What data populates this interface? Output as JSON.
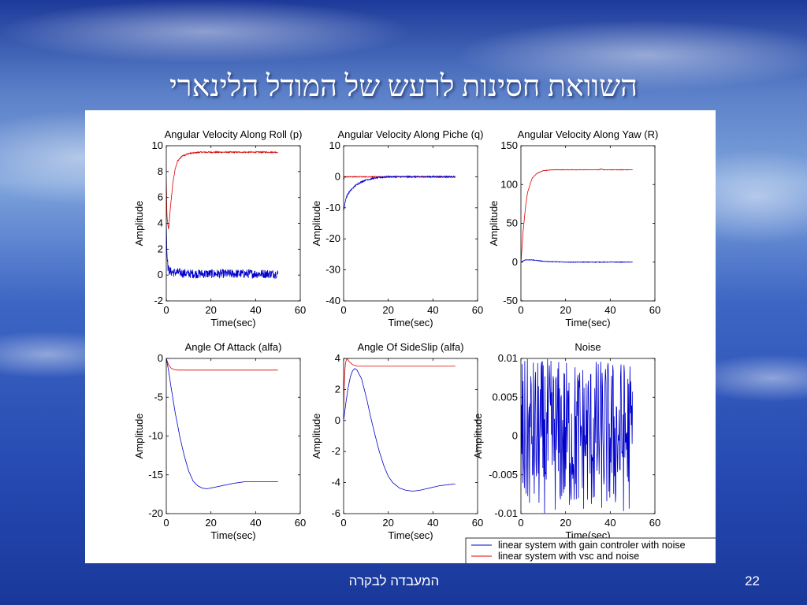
{
  "slide": {
    "title": "השוואת חסינות לרעש של המודל הלינארי",
    "footer": "המעבדה לבקרה",
    "page_number": "22"
  },
  "colors": {
    "blue": "#0000cc",
    "red": "#dd0000"
  },
  "legend": {
    "entries": [
      {
        "label": "linear system with gain controler with noise",
        "color": "#0000cc"
      },
      {
        "label": "linear system with vsc and noise",
        "color": "#dd0000"
      }
    ]
  },
  "chart_data": [
    {
      "type": "line",
      "title": "Angular Velocity Along Roll (p)",
      "xlabel": "Time(sec)",
      "ylabel": "Amplitude",
      "xlim": [
        0,
        60
      ],
      "ylim": [
        -2,
        10
      ],
      "xticks": [
        "0",
        "20",
        "40",
        "60"
      ],
      "yticks": [
        "-2",
        "0",
        "2",
        "4",
        "6",
        "8",
        "10"
      ],
      "series": [
        {
          "color": "#dd0000",
          "x": [
            0,
            0.3,
            1,
            2,
            3,
            4,
            5,
            7,
            10,
            15,
            20,
            30,
            40,
            50
          ],
          "y": [
            7.5,
            4.5,
            3.5,
            5.5,
            7.2,
            8.2,
            8.8,
            9.2,
            9.4,
            9.5,
            9.5,
            9.5,
            9.5,
            9.5
          ],
          "noise": 0.05
        },
        {
          "color": "#0000cc",
          "x": [
            0,
            0.3,
            0.8,
            1.5,
            3,
            5,
            10,
            20,
            30,
            40,
            50
          ],
          "y": [
            4.0,
            1.5,
            0.5,
            0.3,
            0.2,
            0.2,
            0.1,
            0.1,
            0.1,
            0.1,
            0.1
          ],
          "noise": 0.35
        }
      ]
    },
    {
      "type": "line",
      "title": "Angular Velocity Along Piche (q)",
      "xlabel": "Time(sec)",
      "ylabel": "Amplitude",
      "xlim": [
        0,
        60
      ],
      "ylim": [
        -40,
        10
      ],
      "xticks": [
        "0",
        "20",
        "40",
        "60"
      ],
      "yticks": [
        "-40",
        "-30",
        "-20",
        "-10",
        "0",
        "10"
      ],
      "series": [
        {
          "color": "#dd0000",
          "x": [
            0,
            0.5,
            2,
            5,
            10,
            20,
            30,
            40,
            50
          ],
          "y": [
            -1,
            0,
            0,
            0,
            0,
            0,
            0,
            0,
            0
          ],
          "noise": 0.15
        },
        {
          "color": "#0000cc",
          "x": [
            0,
            1,
            2,
            3,
            5,
            7,
            10,
            15,
            20,
            30,
            40,
            50
          ],
          "y": [
            -11,
            -7,
            -5.5,
            -4.5,
            -3,
            -2,
            -1,
            -0.3,
            0,
            0,
            0,
            0
          ],
          "noise": 0.25
        }
      ]
    },
    {
      "type": "line",
      "title": "Angular Velocity Along Yaw (R)",
      "xlabel": "Time(sec)",
      "ylabel": "Amplitude",
      "xlim": [
        0,
        60
      ],
      "ylim": [
        -50,
        150
      ],
      "xticks": [
        "0",
        "20",
        "40",
        "60"
      ],
      "yticks": [
        "-50",
        "0",
        "50",
        "100",
        "150"
      ],
      "series": [
        {
          "color": "#dd0000",
          "x": [
            0,
            1,
            2,
            3,
            5,
            7,
            10,
            15,
            20,
            35,
            36,
            37,
            50
          ],
          "y": [
            0,
            40,
            70,
            90,
            108,
            114,
            118,
            119,
            119,
            119,
            120,
            119,
            119
          ],
          "noise": 0.3
        },
        {
          "color": "#0000cc",
          "x": [
            0,
            2,
            5,
            10,
            20,
            30,
            40,
            50
          ],
          "y": [
            0,
            3,
            3,
            1,
            0,
            0,
            0,
            0
          ],
          "noise": 0.4
        }
      ]
    },
    {
      "type": "line",
      "title": "Angle Of Attack (alfa)",
      "xlabel": "Time(sec)",
      "ylabel": "Amplitude",
      "xlim": [
        0,
        60
      ],
      "ylim": [
        -20,
        0
      ],
      "xticks": [
        "0",
        "20",
        "40",
        "60"
      ],
      "yticks": [
        "-20",
        "-15",
        "-10",
        "-5",
        "0"
      ],
      "series": [
        {
          "color": "#dd0000",
          "x": [
            0,
            1,
            2,
            3,
            5,
            10,
            20,
            30,
            40,
            50
          ],
          "y": [
            0,
            -0.8,
            -1.2,
            -1.4,
            -1.5,
            -1.5,
            -1.5,
            -1.5,
            -1.5,
            -1.5
          ],
          "noise": 0
        },
        {
          "color": "#0000cc",
          "x": [
            0,
            1,
            2,
            4,
            6,
            8,
            10,
            12,
            14,
            16,
            18,
            20,
            25,
            30,
            35,
            40,
            45,
            50
          ],
          "y": [
            0,
            -1.5,
            -3.5,
            -7,
            -10,
            -12.5,
            -14.5,
            -15.8,
            -16.4,
            -16.7,
            -16.8,
            -16.7,
            -16.4,
            -16.1,
            -15.9,
            -15.9,
            -15.9,
            -15.9
          ],
          "noise": 0
        }
      ]
    },
    {
      "type": "line",
      "title": "Angle Of SideSlip (alfa)",
      "xlabel": "Time(sec)",
      "ylabel": "Amplitude",
      "xlim": [
        0,
        60
      ],
      "ylim": [
        -6,
        4
      ],
      "xticks": [
        "0",
        "20",
        "40",
        "60"
      ],
      "yticks": [
        "-6",
        "-4",
        "-2",
        "0",
        "2",
        "4"
      ],
      "series": [
        {
          "color": "#dd0000",
          "x": [
            0,
            0.3,
            0.8,
            1.5,
            2.5,
            4,
            6,
            10,
            20,
            30,
            40,
            50
          ],
          "y": [
            0.5,
            2.5,
            3.7,
            4.0,
            3.8,
            3.6,
            3.5,
            3.5,
            3.5,
            3.5,
            3.5,
            3.5
          ],
          "noise": 0
        },
        {
          "color": "#0000cc",
          "x": [
            0,
            1,
            2,
            3,
            4,
            5,
            6,
            8,
            10,
            12,
            14,
            16,
            18,
            20,
            22,
            25,
            28,
            31,
            34,
            37,
            40,
            43,
            46,
            49,
            50
          ],
          "y": [
            0,
            1.1,
            2.1,
            2.8,
            3.2,
            3.35,
            3.25,
            2.7,
            1.6,
            0.3,
            -0.9,
            -2.0,
            -2.9,
            -3.6,
            -4.0,
            -4.35,
            -4.5,
            -4.55,
            -4.5,
            -4.4,
            -4.3,
            -4.2,
            -4.15,
            -4.1,
            -4.1
          ],
          "noise": 0
        }
      ]
    },
    {
      "type": "line",
      "title": "Noise",
      "xlabel": "Time(sec)",
      "ylabel": "Amplitude",
      "xlim": [
        0,
        60
      ],
      "ylim": [
        -0.01,
        0.01
      ],
      "xticks": [
        "0",
        "20",
        "40",
        "60"
      ],
      "yticks": [
        "-0.01",
        "-0.005",
        "0",
        "0.005",
        "0.01"
      ],
      "series": [
        {
          "color": "#0000cc",
          "x": [
            0,
            50
          ],
          "y": [
            0,
            0
          ],
          "noise": 0.01,
          "random_fill": true
        }
      ]
    }
  ]
}
